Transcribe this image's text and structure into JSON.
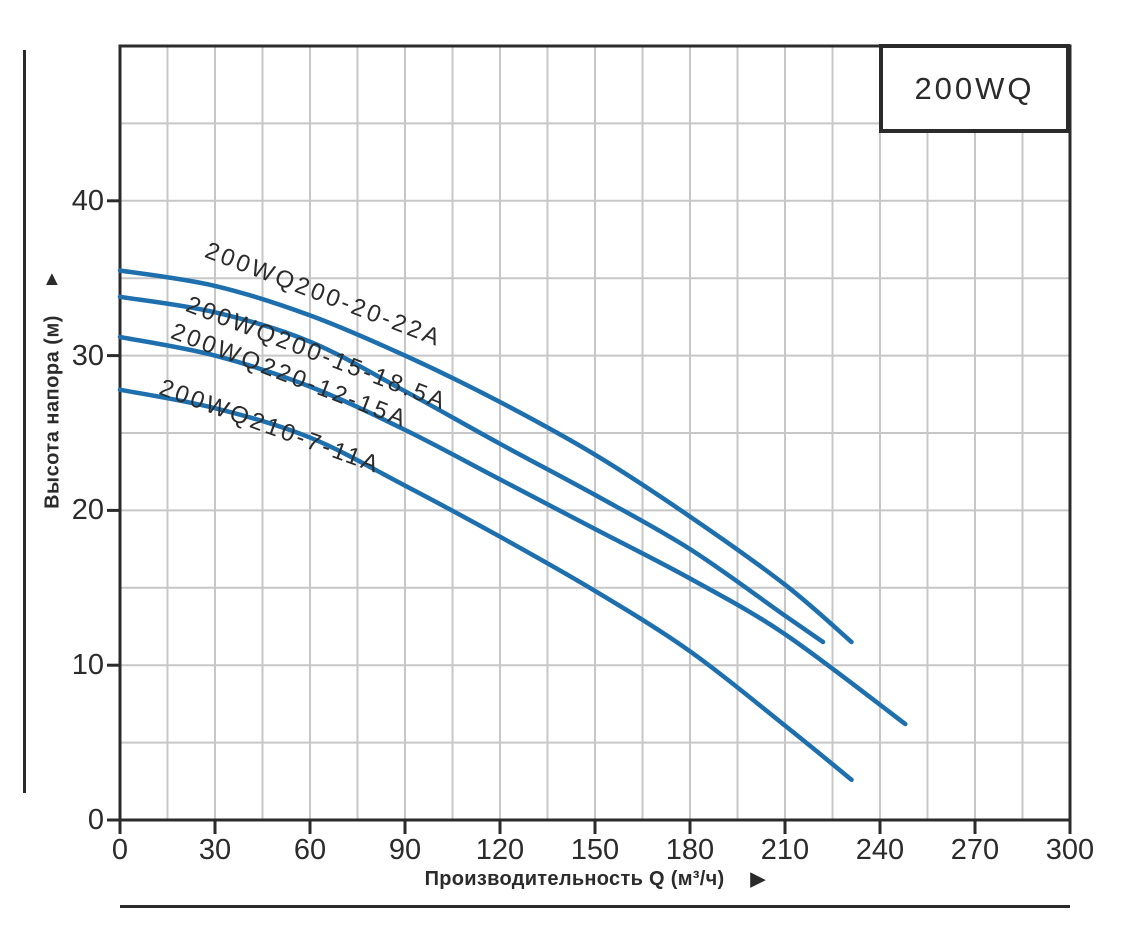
{
  "chart_data": {
    "type": "line",
    "title": "200WQ",
    "xlabel": "Производительность Q (м³/ч)",
    "ylabel": "Высота напора (м)",
    "xlim": [
      0,
      300
    ],
    "ylim": [
      0,
      50
    ],
    "xticks": [
      0,
      30,
      60,
      90,
      120,
      150,
      180,
      210,
      240,
      270,
      300
    ],
    "yticks": [
      0,
      10,
      20,
      30,
      40
    ],
    "x_grid_step": 15,
    "y_grid_step": 5,
    "grid": true,
    "legend_position": "top-right-box",
    "series": [
      {
        "name": "200WQ200-20-22A",
        "points": [
          [
            0,
            35.5
          ],
          [
            30,
            34.5
          ],
          [
            60,
            32.6
          ],
          [
            90,
            30.0
          ],
          [
            120,
            27.0
          ],
          [
            150,
            23.6
          ],
          [
            180,
            19.6
          ],
          [
            210,
            15.2
          ],
          [
            231,
            11.5
          ]
        ],
        "label_pos": {
          "x": 211,
          "y": 237,
          "angle": 21
        }
      },
      {
        "name": "200WQ200-15-18.5A",
        "points": [
          [
            0,
            33.8
          ],
          [
            30,
            32.8
          ],
          [
            60,
            30.9
          ],
          [
            90,
            27.7
          ],
          [
            120,
            24.3
          ],
          [
            150,
            21.0
          ],
          [
            180,
            17.5
          ],
          [
            210,
            13.2
          ],
          [
            222,
            11.5
          ]
        ],
        "label_pos": {
          "x": 192,
          "y": 291,
          "angle": 21
        }
      },
      {
        "name": "200WQ220-12-15A",
        "points": [
          [
            0,
            31.2
          ],
          [
            30,
            30.0
          ],
          [
            60,
            28.0
          ],
          [
            90,
            25.2
          ],
          [
            120,
            22.0
          ],
          [
            150,
            18.8
          ],
          [
            180,
            15.6
          ],
          [
            210,
            12.0
          ],
          [
            248,
            6.2
          ]
        ],
        "label_pos": {
          "x": 177,
          "y": 318,
          "angle": 21
        }
      },
      {
        "name": "200WQ210-7-11A",
        "points": [
          [
            0,
            27.8
          ],
          [
            30,
            26.6
          ],
          [
            60,
            24.7
          ],
          [
            90,
            21.6
          ],
          [
            120,
            18.3
          ],
          [
            150,
            14.8
          ],
          [
            180,
            10.9
          ],
          [
            210,
            6.1
          ],
          [
            231,
            2.6
          ]
        ],
        "label_pos": {
          "x": 165,
          "y": 374,
          "angle": 20
        }
      }
    ]
  },
  "icons": {
    "y_axis_arrow": "▲",
    "x_axis_arrow": "▶"
  },
  "colors": {
    "curve": "#1e6fae",
    "axis": "#2b2b2b",
    "grid": "#c7c7c7",
    "text": "#2b2b2b",
    "background": "#ffffff"
  }
}
